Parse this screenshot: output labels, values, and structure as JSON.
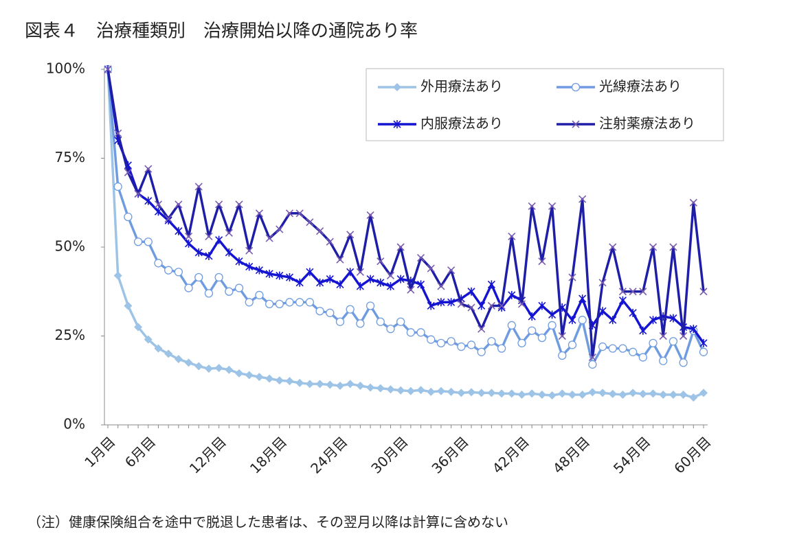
{
  "chart_data": {
    "type": "line",
    "title": "図表４　治療種類別　治療開始以降の通院あり率",
    "note": "（注）健康保険組合を途中で脱退した患者は、その翌月以降は計算に含めない",
    "categories": [
      "1月目",
      null,
      null,
      null,
      "6月目",
      null,
      null,
      null,
      null,
      null,
      null,
      "12月目",
      null,
      null,
      null,
      null,
      null,
      "18月目",
      null,
      null,
      null,
      null,
      null,
      "24月目",
      null,
      null,
      null,
      null,
      null,
      "30月目",
      null,
      null,
      null,
      null,
      null,
      "36月目",
      null,
      null,
      null,
      null,
      null,
      "42月目",
      null,
      null,
      null,
      null,
      null,
      "48月目",
      null,
      null,
      null,
      null,
      null,
      "54月目",
      null,
      null,
      null,
      null,
      null,
      "60月目"
    ],
    "ylim": [
      0,
      100
    ],
    "yticks": [
      {
        "value": 0,
        "label": "0%"
      },
      {
        "value": 25,
        "label": "25%"
      },
      {
        "value": 50,
        "label": "50%"
      },
      {
        "value": 75,
        "label": "75%"
      },
      {
        "value": 100,
        "label": "100%"
      }
    ],
    "legend": "top-right",
    "series": [
      {
        "name": "外用療法あり",
        "color": "#9dc3e6",
        "marker": "diamond",
        "values": [
          100,
          42,
          33.5,
          27.5,
          24,
          21.5,
          20,
          18.5,
          17.5,
          16.5,
          15.8,
          16,
          15.5,
          14.5,
          14,
          13.5,
          13,
          12.5,
          12.3,
          11.8,
          11.5,
          11.5,
          11.3,
          11,
          11.5,
          11,
          10.5,
          10.3,
          10,
          9.7,
          9.5,
          9.8,
          9.3,
          9.5,
          9.3,
          9,
          9.2,
          9,
          9,
          8.8,
          8.8,
          8.5,
          8.8,
          8.5,
          8.3,
          8.8,
          8.5,
          8.5,
          9.2,
          9,
          8.7,
          8.5,
          9,
          8.7,
          8.8,
          8.5,
          8.5,
          8.5,
          7.7,
          9
        ]
      },
      {
        "name": "光線療法あり",
        "color": "#6f9ce0",
        "marker": "circle",
        "values": [
          100,
          67,
          58.5,
          51.5,
          51.5,
          45.5,
          43.5,
          43,
          38.5,
          41.5,
          37,
          41.5,
          37.5,
          38.5,
          34.5,
          36.5,
          34,
          34,
          34.5,
          34.5,
          34.5,
          32,
          31.5,
          29,
          32.5,
          28.5,
          33.5,
          29,
          27,
          29,
          26,
          26,
          24,
          23,
          23.5,
          22,
          22.5,
          20.5,
          23.5,
          21.5,
          28,
          23,
          26.5,
          24.5,
          28,
          19.5,
          22.5,
          29.5,
          17,
          22,
          21.5,
          21.5,
          20.5,
          19,
          23,
          18,
          23.5,
          17.5,
          26.5,
          20.5
        ]
      },
      {
        "name": "内服療法あり",
        "color": "#1414d2",
        "marker": "asterisk",
        "values": [
          100,
          80,
          73,
          65,
          63,
          60,
          57.5,
          54.5,
          51,
          48.5,
          47.5,
          52,
          48.5,
          46,
          44.5,
          43.5,
          42.5,
          42,
          41.5,
          40,
          43,
          40,
          41,
          39.5,
          43,
          39,
          41,
          40,
          39,
          41,
          40.5,
          39.5,
          33.5,
          34.5,
          34.5,
          35.5,
          37.5,
          33.5,
          39.5,
          33,
          36.5,
          35,
          30.5,
          33.5,
          31,
          33,
          29.5,
          35.5,
          28,
          32,
          29.5,
          35,
          31.5,
          26.5,
          29.5,
          30.5,
          30,
          27.5,
          27,
          23
        ]
      },
      {
        "name": "注射薬療法あり",
        "color": "#1e1ea6",
        "marker": "cross",
        "values": [
          100,
          82,
          71,
          65,
          72,
          62,
          58,
          62,
          53,
          67,
          53,
          62,
          54,
          62,
          49,
          59.5,
          52.5,
          55,
          59.5,
          59.5,
          57,
          54.5,
          51.5,
          46.5,
          53.5,
          43,
          59,
          46,
          42,
          50,
          38,
          47,
          44,
          39,
          43.5,
          34,
          33,
          27,
          33.5,
          33.5,
          53,
          34,
          61.5,
          46,
          61.5,
          25,
          41.5,
          63.5,
          19,
          40,
          50,
          37.5,
          37.5,
          37.5,
          50,
          25,
          50,
          25,
          62.5,
          37.5
        ]
      }
    ]
  }
}
